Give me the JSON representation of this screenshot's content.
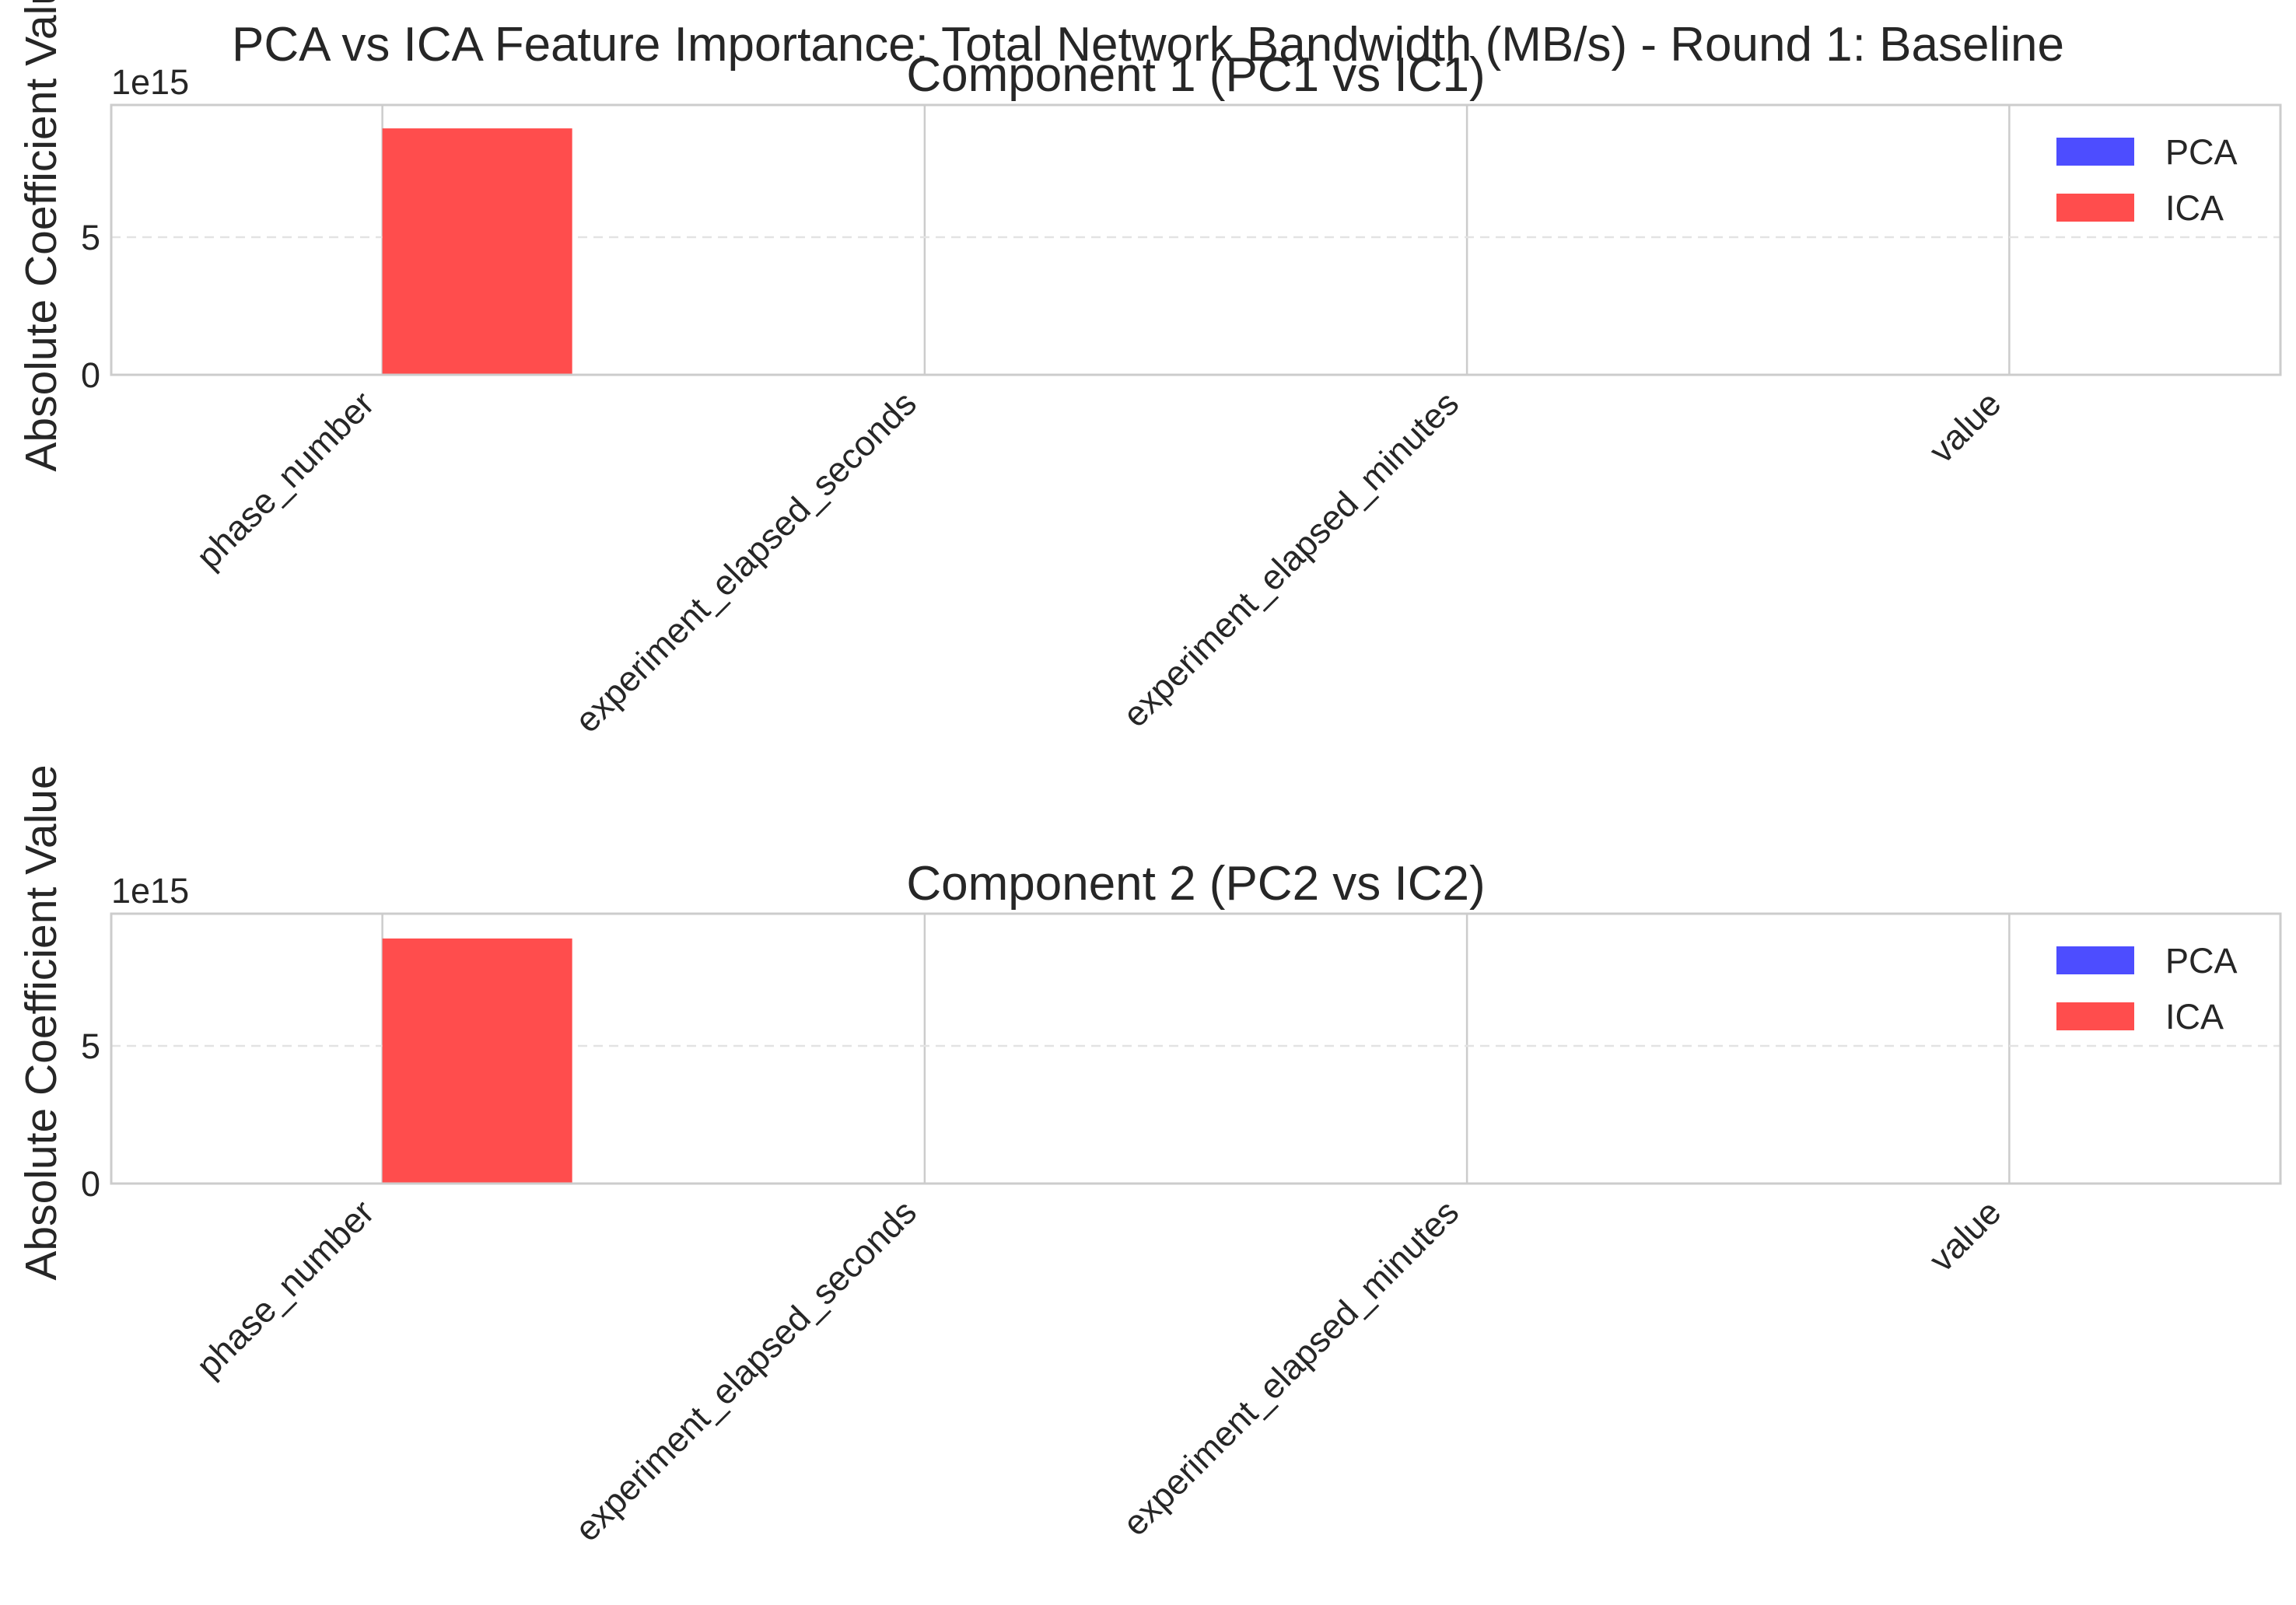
{
  "figure": {
    "title": "PCA vs ICA Feature Importance: Total Network Bandwidth (MB/s) - Round 1: Baseline"
  },
  "chart_data": [
    {
      "type": "bar",
      "title": "Component 1 (PC1 vs IC1)",
      "xlabel": "",
      "ylabel": "Absolute Coefficient Value",
      "y_offset_label": "1e15",
      "y_scale": 1000000000000000.0,
      "ylim": [
        0,
        9800000000000000.0
      ],
      "yticks": [
        0,
        5
      ],
      "categories": [
        "phase_number",
        "experiment_elapsed_seconds",
        "experiment_elapsed_minutes",
        "value"
      ],
      "series": [
        {
          "name": "PCA",
          "color": "#4d4dff",
          "values": [
            0.7,
            0.7,
            0.0,
            0.0
          ]
        },
        {
          "name": "ICA",
          "color": "#ff4d4d",
          "values": [
            8950000000000000.0,
            0,
            0,
            0
          ]
        }
      ],
      "grid": {
        "x": true,
        "y": true
      },
      "legend": "top-right"
    },
    {
      "type": "bar",
      "title": "Component 2 (PC2 vs IC2)",
      "xlabel": "",
      "ylabel": "Absolute Coefficient Value",
      "y_offset_label": "1e15",
      "y_scale": 1000000000000000.0,
      "ylim": [
        0,
        9800000000000000.0
      ],
      "yticks": [
        0,
        5
      ],
      "categories": [
        "phase_number",
        "experiment_elapsed_seconds",
        "experiment_elapsed_minutes",
        "value"
      ],
      "series": [
        {
          "name": "PCA",
          "color": "#4d4dff",
          "values": [
            0.7,
            0.7,
            0.0,
            0.0
          ]
        },
        {
          "name": "ICA",
          "color": "#ff4d4d",
          "values": [
            8900000000000000.0,
            0,
            0,
            0
          ]
        }
      ],
      "grid": {
        "x": true,
        "y": true
      },
      "legend": "top-right"
    }
  ]
}
